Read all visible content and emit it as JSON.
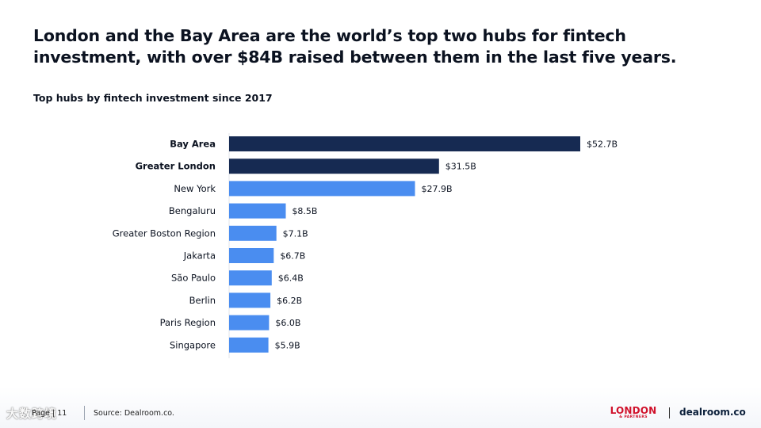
{
  "slide": {
    "title": "London and the Bay Area are the world’s top two hubs for fintech investment, with over $84B raised between them in the last five years.",
    "page_number": "Page | 11",
    "source": "Source: Dealroom.co.",
    "logo_london": "LONDON",
    "logo_london_sub": "& PARTNERS",
    "logo_dealroom": "dealroom.co",
    "watermark": "大数跨境"
  },
  "colors": {
    "highlight": "#162a52",
    "default": "#4a8df0",
    "text": "#0b1220"
  },
  "chart_data": {
    "type": "bar",
    "orientation": "horizontal",
    "title": "Top hubs by fintech investment since 2017",
    "xlabel": "",
    "ylabel": "",
    "unit": "$B",
    "xlim": [
      0,
      52.7
    ],
    "grid": false,
    "categories": [
      "Bay Area",
      "Greater London",
      "New York",
      "Bengaluru",
      "Greater Boston Region",
      "Jakarta",
      "São Paulo",
      "Berlin",
      "Paris Region",
      "Singapore"
    ],
    "values": [
      52.7,
      31.5,
      27.9,
      8.5,
      7.1,
      6.7,
      6.4,
      6.2,
      6.0,
      5.9
    ],
    "value_labels": [
      "$52.7B",
      "$31.5B",
      "$27.9B",
      "$8.5B",
      "$7.1B",
      "$6.7B",
      "$6.4B",
      "$6.2B",
      "$6.0B",
      "$5.9B"
    ],
    "highlighted": [
      "Bay Area",
      "Greater London"
    ]
  }
}
